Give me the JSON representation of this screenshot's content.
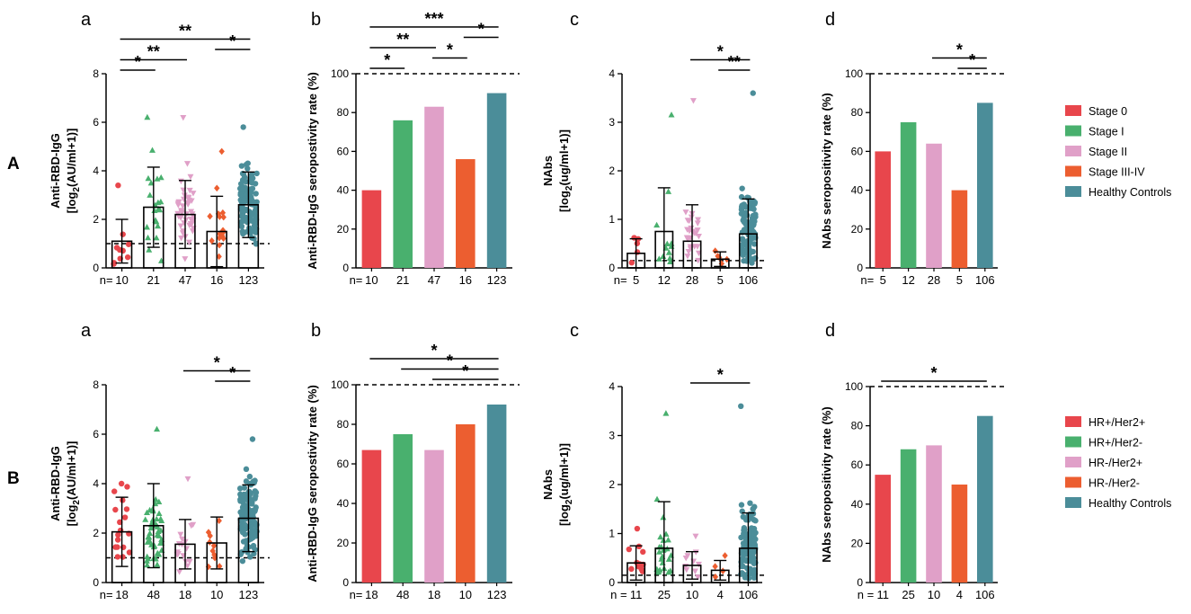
{
  "figure": {
    "row_labels": [
      "A",
      "B"
    ]
  },
  "colors": {
    "stage0": "#e8464c",
    "stageI": "#49b06e",
    "stageII": "#e0a0c8",
    "stageIII": "#ec5e30",
    "healthy": "#4b8d99",
    "hrpp": "#e8464c",
    "hrpm": "#49b06e",
    "hrmp": "#e0a0c8",
    "hrmm": "#ec5e30"
  },
  "legends": [
    {
      "items": [
        {
          "label": "Stage 0",
          "color": "#e8464c"
        },
        {
          "label": "Stage I",
          "color": "#49b06e"
        },
        {
          "label": "Stage II",
          "color": "#e0a0c8"
        },
        {
          "label": "Stage III-IV",
          "color": "#ec5e30"
        },
        {
          "label": "Healthy Controls",
          "color": "#4b8d99"
        }
      ]
    },
    {
      "items": [
        {
          "label": "HR+/Her2+",
          "color": "#e8464c"
        },
        {
          "label": "HR+/Her2-",
          "color": "#49b06e"
        },
        {
          "label": "HR-/Her2+",
          "color": "#e0a0c8"
        },
        {
          "label": "HR-/Her2-",
          "color": "#ec5e30"
        },
        {
          "label": "Healthy Controls",
          "color": "#4b8d99"
        }
      ]
    }
  ],
  "chart_data": [
    {
      "id": "A-a",
      "panel_label": "a",
      "type": "scatter",
      "subtype": "dot-bar-sd",
      "ylabel": "Anti-RBD-IgG",
      "ylabel_unit_pre": "[log",
      "ylabel_unit_sub": "2",
      "ylabel_unit_post": "(AU/ml+1)]",
      "ylim": [
        0,
        8
      ],
      "yticks": [
        0,
        2,
        4,
        6,
        8
      ],
      "cutoff": 1.0,
      "n_prefix": "n= ",
      "n": [
        "10",
        "21",
        "47",
        "16",
        "123"
      ],
      "colors": [
        "#e8464c",
        "#49b06e",
        "#e0a0c8",
        "#ec5e30",
        "#4b8d99"
      ],
      "markers": [
        "circle",
        "triangle-up",
        "triangle-down",
        "diamond",
        "circle"
      ],
      "means": [
        1.1,
        2.5,
        2.2,
        1.5,
        2.6
      ],
      "sd": [
        0.9,
        1.65,
        1.4,
        1.45,
        1.35
      ],
      "maxes": [
        3.4,
        6.2,
        6.2,
        4.8,
        5.8
      ],
      "sig": [
        {
          "from": 0,
          "to": 1,
          "label": "*"
        },
        {
          "from": 0,
          "to": 2,
          "label": "**"
        },
        {
          "from": 3,
          "to": 4,
          "label": "*"
        },
        {
          "from": 0,
          "to": 4,
          "label": "**"
        }
      ]
    },
    {
      "id": "A-b",
      "panel_label": "b",
      "type": "bar",
      "ylabel": "Anti-RBD-IgG seropostivity rate (%)",
      "ylim": [
        0,
        100
      ],
      "yticks": [
        0,
        20,
        40,
        60,
        80,
        100
      ],
      "refline": 100,
      "n_prefix": "n= ",
      "n": [
        "10",
        "21",
        "47",
        "16",
        "123"
      ],
      "colors": [
        "#e8464c",
        "#49b06e",
        "#e0a0c8",
        "#ec5e30",
        "#4b8d99"
      ],
      "values": [
        40,
        76,
        83,
        56,
        90
      ],
      "sig": [
        {
          "from": 0,
          "to": 1,
          "label": "*"
        },
        {
          "from": 2,
          "to": 3,
          "label": "*"
        },
        {
          "from": 0,
          "to": 2,
          "label": "**"
        },
        {
          "from": 3,
          "to": 4,
          "label": "*"
        },
        {
          "from": 0,
          "to": 4,
          "label": "***"
        }
      ]
    },
    {
      "id": "A-c",
      "panel_label": "c",
      "type": "scatter",
      "subtype": "dot-bar-sd",
      "ylabel": "NAbs",
      "ylabel_unit_pre": "[log",
      "ylabel_unit_sub": "2",
      "ylabel_unit_post": "(ug/ml+1)]",
      "ylim": [
        0,
        4
      ],
      "yticks": [
        0,
        1,
        2,
        3,
        4
      ],
      "cutoff": 0.15,
      "n_prefix": "n=  ",
      "n": [
        "5",
        "12",
        "28",
        "5",
        "106"
      ],
      "colors": [
        "#e8464c",
        "#49b06e",
        "#e0a0c8",
        "#ec5e30",
        "#4b8d99"
      ],
      "markers": [
        "circle",
        "triangle-up",
        "triangle-down",
        "diamond",
        "circle"
      ],
      "means": [
        0.3,
        0.75,
        0.55,
        0.18,
        0.7
      ],
      "sd": [
        0.3,
        0.9,
        0.75,
        0.15,
        0.72
      ],
      "maxes": [
        0.62,
        3.15,
        3.45,
        0.35,
        3.6
      ],
      "sig": [
        {
          "from": 3,
          "to": 4,
          "label": "**"
        },
        {
          "from": 2,
          "to": 4,
          "label": "*"
        }
      ]
    },
    {
      "id": "A-d",
      "panel_label": "d",
      "type": "bar",
      "ylabel": "NAbs seropositivity rate (%)",
      "ylim": [
        0,
        100
      ],
      "yticks": [
        0,
        20,
        40,
        60,
        80,
        100
      ],
      "refline": 100,
      "n_prefix": "n=  ",
      "n": [
        "5",
        "12",
        "28",
        "5",
        "106"
      ],
      "colors": [
        "#e8464c",
        "#49b06e",
        "#e0a0c8",
        "#ec5e30",
        "#4b8d99"
      ],
      "values": [
        60,
        75,
        64,
        40,
        85
      ],
      "sig": [
        {
          "from": 3,
          "to": 4,
          "label": "*"
        },
        {
          "from": 2,
          "to": 4,
          "label": "*"
        }
      ]
    },
    {
      "id": "B-a",
      "panel_label": "a",
      "type": "scatter",
      "subtype": "dot-bar-sd",
      "ylabel": "Anti-RBD-IgG",
      "ylabel_unit_pre": "[log",
      "ylabel_unit_sub": "2",
      "ylabel_unit_post": "(AU/ml+1)]",
      "ylim": [
        0,
        8
      ],
      "yticks": [
        0,
        2,
        4,
        6,
        8
      ],
      "cutoff": 1.0,
      "n_prefix": "n= ",
      "n": [
        "18",
        "48",
        "18",
        "10",
        "123"
      ],
      "colors": [
        "#e8464c",
        "#49b06e",
        "#e0a0c8",
        "#ec5e30",
        "#4b8d99"
      ],
      "markers": [
        "circle",
        "triangle-up",
        "triangle-down",
        "diamond",
        "circle"
      ],
      "means": [
        2.05,
        2.3,
        1.55,
        1.6,
        2.6
      ],
      "sd": [
        1.4,
        1.7,
        1.0,
        1.05,
        1.35
      ],
      "maxes": [
        4.0,
        6.2,
        4.2,
        2.5,
        5.8
      ],
      "sig": [
        {
          "from": 3,
          "to": 4,
          "label": "*"
        },
        {
          "from": 2,
          "to": 4,
          "label": "*"
        }
      ]
    },
    {
      "id": "B-b",
      "panel_label": "b",
      "type": "bar",
      "ylabel": "Anti-RBD-IgG seropostivity rate (%)",
      "ylim": [
        0,
        100
      ],
      "yticks": [
        0,
        20,
        40,
        60,
        80,
        100
      ],
      "refline": 100,
      "n_prefix": "n= ",
      "n": [
        "18",
        "48",
        "18",
        "10",
        "123"
      ],
      "colors": [
        "#e8464c",
        "#49b06e",
        "#e0a0c8",
        "#ec5e30",
        "#4b8d99"
      ],
      "values": [
        67,
        75,
        67,
        80,
        90
      ],
      "sig": [
        {
          "from": 2,
          "to": 4,
          "label": "*"
        },
        {
          "from": 1,
          "to": 4,
          "label": "*"
        },
        {
          "from": 0,
          "to": 4,
          "label": "*"
        }
      ]
    },
    {
      "id": "B-c",
      "panel_label": "c",
      "type": "scatter",
      "subtype": "dot-bar-sd",
      "ylabel": "NAbs",
      "ylabel_unit_pre": "[log",
      "ylabel_unit_sub": "2",
      "ylabel_unit_post": "(ug/ml+1)]",
      "ylim": [
        0,
        4
      ],
      "yticks": [
        0,
        1,
        2,
        3,
        4
      ],
      "cutoff": 0.15,
      "n_prefix": "n =",
      "n": [
        "11",
        "25",
        "10",
        "4",
        "106"
      ],
      "colors": [
        "#e8464c",
        "#49b06e",
        "#e0a0c8",
        "#ec5e30",
        "#4b8d99"
      ],
      "markers": [
        "circle",
        "triangle-up",
        "triangle-down",
        "diamond",
        "circle"
      ],
      "means": [
        0.4,
        0.7,
        0.35,
        0.25,
        0.7
      ],
      "sd": [
        0.35,
        0.95,
        0.28,
        0.2,
        0.72
      ],
      "maxes": [
        1.1,
        3.45,
        0.95,
        0.55,
        3.6
      ],
      "sig": [
        {
          "from": 2,
          "to": 4,
          "label": "*"
        }
      ]
    },
    {
      "id": "B-d",
      "panel_label": "d",
      "type": "bar",
      "ylabel": "NAbs seropositivity rate (%)",
      "ylim": [
        0,
        100
      ],
      "yticks": [
        0,
        20,
        40,
        60,
        80,
        100
      ],
      "refline": 100,
      "n_prefix": "n = ",
      "n": [
        "11",
        "25",
        "10",
        "4",
        "106"
      ],
      "colors": [
        "#e8464c",
        "#49b06e",
        "#e0a0c8",
        "#ec5e30",
        "#4b8d99"
      ],
      "values": [
        55,
        68,
        70,
        50,
        85
      ],
      "sig": [
        {
          "from": 0,
          "to": 4,
          "label": "*"
        }
      ]
    }
  ]
}
